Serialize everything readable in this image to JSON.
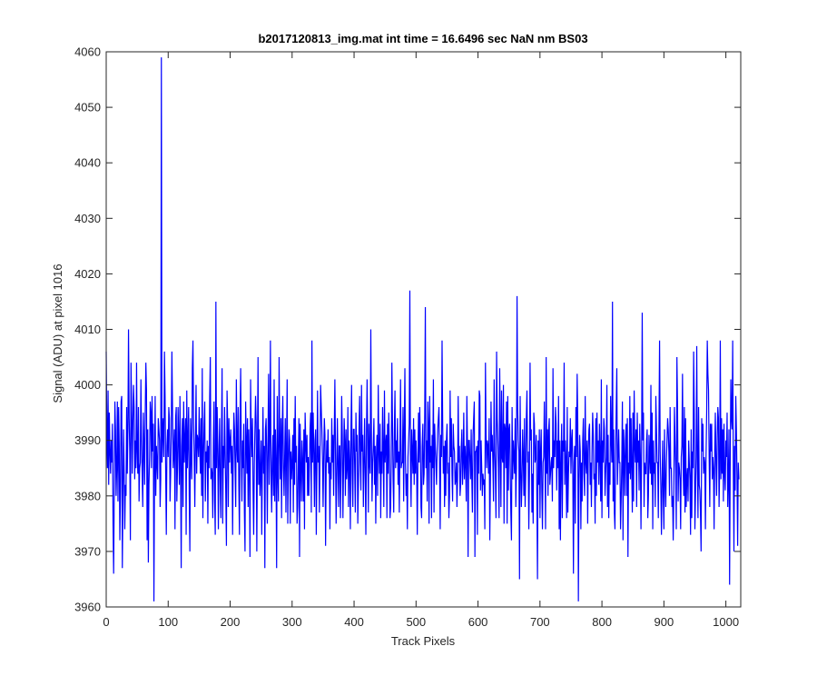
{
  "chart_data": {
    "type": "line",
    "title": "b2017120813_img.mat int time = 16.6496 sec  NaN nm BS03",
    "xlabel": "Track Pixels",
    "ylabel": "Signal (ADU) at pixel 1016",
    "xlim": [
      0,
      1024
    ],
    "ylim": [
      3960,
      4060
    ],
    "xticks": [
      0,
      100,
      200,
      300,
      400,
      500,
      600,
      700,
      800,
      900,
      1000
    ],
    "yticks": [
      3960,
      3970,
      3980,
      3990,
      4000,
      4010,
      4020,
      4030,
      4040,
      4050,
      4060
    ],
    "grid": false,
    "legend": "none",
    "series": [
      {
        "color": "#0000ff",
        "x_start": 0,
        "x_step": 1,
        "values": [
          4006,
          3992,
          3985,
          3999,
          3982,
          3995,
          3988,
          3984,
          3990,
          3986,
          3993,
          3975,
          3966,
          3981,
          3997,
          3992,
          3980,
          3985,
          3997,
          3979,
          3996,
          3989,
          3972,
          3981,
          3997,
          3998,
          3967,
          3980,
          3992,
          3984,
          3974,
          3982,
          3980,
          3996,
          3984,
          3992,
          4010,
          3994,
          3988,
          3972,
          4004,
          3996,
          3984,
          3993,
          4000,
          3996,
          3983,
          3990,
          3985,
          4004,
          3988,
          3984,
          3996,
          3979,
          3985,
          3986,
          4001,
          3990,
          3984,
          3978,
          3995,
          3989,
          3982,
          3995,
          4004,
          3999,
          3972,
          3992,
          3968,
          3982,
          3987,
          3997,
          3995,
          3985,
          3998,
          3988,
          3993,
          3961,
          3985,
          3998,
          3980,
          3989,
          3986,
          3983,
          3994,
          3992,
          3990,
          3978,
          3983,
          4059,
          3986,
          3991,
          3994,
          3987,
          4006,
          3998,
          3984,
          3973,
          3989,
          3992,
          3987,
          3996,
          3994,
          3979,
          3984,
          3992,
          4006,
          3996,
          3985,
          3988,
          3992,
          3974,
          3994,
          3996,
          3979,
          3985,
          3996,
          3990,
          3982,
          3998,
          3986,
          3967,
          3989,
          3994,
          3978,
          3997,
          3986,
          3990,
          3994,
          3973,
          3999,
          3985,
          3990,
          3996,
          3980,
          3970,
          3994,
          3988,
          3983,
          4003,
          4008,
          3993,
          3987,
          3978,
          3990,
          4000,
          3984,
          3991,
          3990,
          3987,
          3996,
          3989,
          3984,
          3994,
          3980,
          4003,
          3976,
          3987,
          3993,
          3997,
          3979,
          3988,
          3986,
          3990,
          3975,
          3989,
          3985,
          3998,
          4005,
          3983,
          3985,
          3984,
          3976,
          3990,
          3997,
          3979,
          3973,
          4015,
          3985,
          3996,
          3989,
          3974,
          3987,
          3994,
          3982,
          3976,
          3991,
          4003,
          3975,
          3989,
          3985,
          3996,
          3988,
          3980,
          3971,
          3999,
          3993,
          3978,
          3994,
          3986,
          3990,
          3992,
          3984,
          3989,
          3973,
          3987,
          3995,
          3992,
          3985,
          3978,
          4001,
          3989,
          3986,
          3996,
          3982,
          3973,
          3994,
          4003,
          3988,
          3979,
          3990,
          3985,
          3993,
          3977,
          3970,
          3997,
          3990,
          3984,
          3994,
          3978,
          3992,
          3986,
          3969,
          4001,
          3991,
          3987,
          3994,
          3981,
          3973,
          3986,
          3992,
          3998,
          3993,
          3970,
          3987,
          4005,
          3982,
          3992,
          3980,
          3984,
          3990,
          3973,
          3986,
          3996,
          3984,
          3989,
          3967,
          3992,
          3994,
          3987,
          3975,
          3989,
          4002,
          3982,
          3991,
          4008,
          3984,
          3977,
          3986,
          3991,
          3980,
          4001,
          3979,
          3992,
          3986,
          3967,
          3998,
          3984,
          3979,
          4005,
          3990,
          3983,
          3994,
          3976,
          3992,
          3998,
          3985,
          3980,
          3987,
          3994,
          3977,
          3989,
          4001,
          3975,
          3986,
          3992,
          3990,
          3975,
          3988,
          3983,
          3986,
          3991,
          3977,
          3994,
          3982,
          3998,
          3986,
          3989,
          3975,
          3978,
          3986,
          3994,
          3969,
          3993,
          3985,
          3979,
          3990,
          3986,
          3979,
          3992,
          3974,
          3995,
          3990,
          3986,
          3991,
          3980,
          3987,
          3980,
          3986,
          3992,
          3995,
          3977,
          4008,
          3986,
          3995,
          3988,
          3978,
          3990,
          3992,
          3973,
          3985,
          3999,
          3986,
          3989,
          3977,
          3987,
          4000,
          3996,
          3992,
          3987,
          3978,
          3987,
          3994,
          3991,
          3971,
          3985,
          3990,
          3986,
          3992,
          3984,
          3987,
          3974,
          3986,
          3983,
          3994,
          3986,
          3991,
          3980,
          3991,
          4001,
          3988,
          3975,
          3983,
          3994,
          3986,
          3978,
          3989,
          3989,
          3976,
          3985,
          3998,
          3991,
          3976,
          3985,
          3994,
          3990,
          3980,
          3992,
          3983,
          3985,
          3996,
          3978,
          3990,
          3986,
          3974,
          3992,
          4000,
          3984,
          3978,
          3992,
          3992,
          3985,
          3977,
          3995,
          3988,
          3991,
          3975,
          3982,
          3992,
          3998,
          3986,
          3981,
          4000,
          3988,
          3991,
          3978,
          3986,
          3994,
          3984,
          3973,
          3991,
          4001,
          3990,
          3977,
          3993,
          3986,
          3984,
          4010,
          3991,
          3979,
          3986,
          3989,
          3994,
          3982,
          3989,
          3975,
          3987,
          3991,
          3980,
          4000,
          3988,
          3984,
          3993,
          3976,
          3988,
          3984,
          3996,
          3988,
          3978,
          3999,
          3986,
          3989,
          3991,
          3976,
          3993,
          3984,
          3995,
          3988,
          3976,
          3978,
          3986,
          4004,
          3993,
          3983,
          3977,
          3992,
          3999,
          3985,
          3990,
          3986,
          3994,
          3982,
          3988,
          3977,
          3989,
          4001,
          3985,
          3986,
          3986,
          3996,
          3979,
          3992,
          4003,
          3986,
          3980,
          3984,
          3974,
          3987,
          3990,
          3993,
          4017,
          3986,
          3978,
          3992,
          3988,
          3984,
          3994,
          3982,
          3992,
          3984,
          3990,
          3985,
          3973,
          3986,
          3995,
          3986,
          3996,
          3989,
          3978,
          3976,
          3989,
          3993,
          3982,
          3984,
          3995,
          4014,
          3985,
          3990,
          3979,
          3997,
          3993,
          3975,
          3998,
          3986,
          3989,
          3976,
          3991,
          3985,
          4001,
          3977,
          3993,
          3989,
          3986,
          3982,
          3988,
          3992,
          3994,
          3996,
          3985,
          3974,
          3991,
          3987,
          4008,
          3993,
          3984,
          3989,
          3978,
          3990,
          3980,
          3990,
          3993,
          3984,
          3986,
          3976,
          3980,
          3999,
          3987,
          3994,
          3984,
          3979,
          3993,
          3989,
          3988,
          3982,
          3983,
          3986,
          3978,
          3983,
          3998,
          3986,
          3989,
          3980,
          3982,
          3989,
          3992,
          3982,
          3986,
          3995,
          3983,
          3989,
          3986,
          3979,
          3998,
          3989,
          3969,
          3990,
          3990,
          3986,
          3983,
          3992,
          3983,
          3977,
          3991,
          3994,
          3997,
          3969,
          3988,
          3988,
          3989,
          3973,
          3990,
          3984,
          3999,
          3998,
          3981,
          3990,
          3985,
          3980,
          3984,
          3982,
          3983,
          3974,
          4004,
          3991,
          3985,
          3990,
          3989,
          3984,
          3994,
          3972,
          3983,
          3997,
          3988,
          3991,
          3986,
          3979,
          4001,
          3988,
          3984,
          3976,
          4006,
          3994,
          3990,
          3985,
          3976,
          4003,
          3992,
          3978,
          3999,
          3987,
          3986,
          4000,
          3975,
          3993,
          3992,
          3985,
          3997,
          3975,
          3998,
          3981,
          3992,
          3993,
          3985,
          3977,
          3972,
          3996,
          3983,
          3990,
          3987,
          3984,
          3994,
          3978,
          3985,
          4016,
          3996,
          3990,
          3988,
          3965,
          3998,
          3986,
          3978,
          3983,
          3992,
          3987,
          3980,
          3994,
          3978,
          3984,
          3994,
          3999,
          3986,
          3988,
          3974,
          3984,
          4004,
          3990,
          3992,
          3977,
          3984,
          3975,
          3995,
          3993,
          3986,
          3987,
          3991,
          3980,
          3965,
          3990,
          3982,
          3992,
          3976,
          3988,
          3992,
          3981,
          3974,
          3986,
          3987,
          3997,
          3987,
          3974,
          4005,
          3984,
          3992,
          3980,
          3992,
          3994,
          3982,
          3984,
          3986,
          3987,
          3979,
          4003,
          3985,
          3990,
          3987,
          3996,
          3993,
          3981,
          3990,
          3985,
          3998,
          3974,
          3990,
          3972,
          3986,
          3993,
          3976,
          3990,
          3988,
          4004,
          3982,
          3990,
          3986,
          3976,
          3996,
          3977,
          3984,
          3988,
          3987,
          3994,
          3984,
          3990,
          3992,
          3984,
          3966,
          3986,
          3989,
          3975,
          3996,
          3987,
          4002,
          3993,
          3961,
          3983,
          3991,
          3988,
          3974,
          3986,
          3979,
          3990,
          3994,
          3984,
          3980,
          3998,
          3986,
          3984,
          3990,
          3975,
          3988,
          3992,
          3993,
          3982,
          3986,
          3978,
          3988,
          3995,
          3991,
          3983,
          3984,
          3975,
          3994,
          3980,
          3995,
          3986,
          3990,
          3982,
          3993,
          3987,
          3979,
          4001,
          3976,
          3990,
          3986,
          3994,
          3992,
          3980,
          3984,
          3987,
          4000,
          3978,
          3991,
          3976,
          3986,
          3982,
          3998,
          3990,
          3986,
          4015,
          3979,
          3992,
          3977,
          3974,
          3987,
          3995,
          4003,
          3982,
          3987,
          3992,
          3986,
          3986,
          3974,
          3979,
          3986,
          3997,
          3972,
          3992,
          3987,
          3980,
          3990,
          3993,
          3980,
          3994,
          3969,
          3986,
          3984,
          3998,
          3983,
          3994,
          3985,
          3977,
          3995,
          3979,
          3999,
          3989,
          3986,
          3992,
          3978,
          3995,
          3986,
          3990,
          3981,
          3993,
          3987,
          3974,
          3989,
          4013,
          3990,
          3995,
          3978,
          3986,
          3984,
          3984,
          3990,
          3992,
          3976,
          3980,
          3991,
          3987,
          3984,
          4000,
          3982,
          3995,
          3974,
          3990,
          3984,
          3986,
          3978,
          3998,
          3992,
          3986,
          3986,
          3976,
          3992,
          4008,
          3988,
          3982,
          3973,
          3982,
          3990,
          3980,
          3974,
          3992,
          3983,
          3978,
          3986,
          3990,
          3994,
          3992,
          3988,
          3980,
          3996,
          3985,
          3985,
          3978,
          3980,
          3972,
          3981,
          3996,
          3990,
          3985,
          3974,
          4005,
          3996,
          3979,
          3986,
          3985,
          3983,
          3974,
          3987,
          3989,
          4002,
          3985,
          3980,
          3996,
          3977,
          3994,
          3978,
          3983,
          3985,
          3979,
          3990,
          3986,
          3983,
          3973,
          3992,
          3976,
          3988,
          3985,
          4006,
          3995,
          3974,
          3980,
          3987,
          4007,
          3986,
          3976,
          3996,
          3982,
          3981,
          3977,
          3970,
          3994,
          3988,
          3993,
          3984,
          3987,
          3986,
          3974,
          3987,
          3995,
          4008,
          4002,
          3999,
          3987,
          3978,
          3993,
          3988,
          3993,
          3983,
          3987,
          3985,
          3974,
          3988,
          3995,
          3986,
          3980,
          3990,
          3996,
          3994,
          3978,
          3985,
          4008,
          3983,
          3994,
          3984,
          3992,
          3979,
          3993,
          3984,
          3981,
          3990,
          3987,
          3995,
          3978,
          3983,
          3992,
          3964,
          3986,
          4001,
          3994,
          3992,
          4008,
          3985,
          3970,
          3989,
          3981,
          3998,
          3992,
          3983,
          3971,
          3986,
          3983
        ]
      }
    ]
  }
}
